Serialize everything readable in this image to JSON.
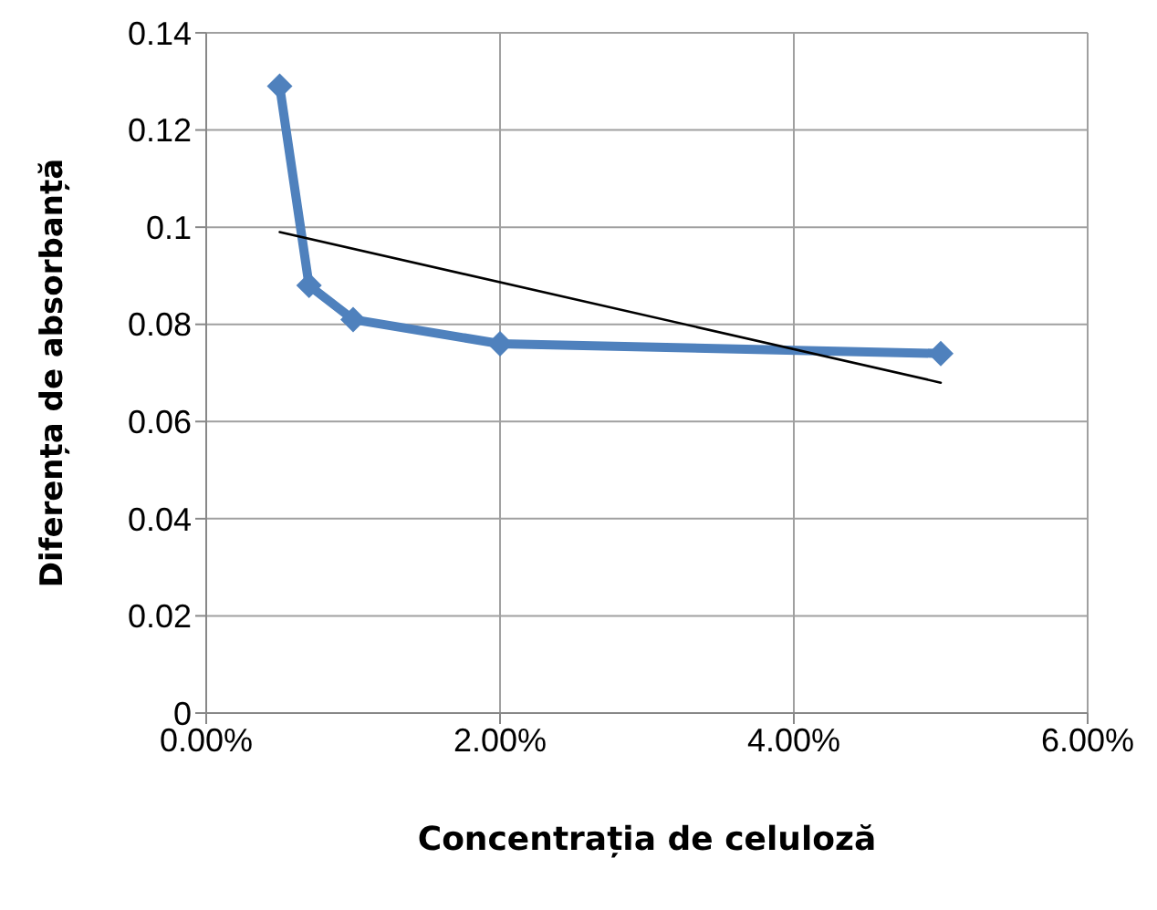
{
  "chart_data": {
    "type": "line",
    "xlabel": "Concentrația de celuloză",
    "ylabel": "Diferența de absorbanță",
    "xlim": [
      0,
      6
    ],
    "xticks": [
      {
        "value": 0,
        "label": "0.00%"
      },
      {
        "value": 2,
        "label": "2.00%"
      },
      {
        "value": 4,
        "label": "4.00%"
      },
      {
        "value": 6,
        "label": "6.00%"
      }
    ],
    "ylim": [
      0,
      0.14
    ],
    "yticks": [
      0,
      0.02,
      0.04,
      0.06,
      0.08,
      0.1,
      0.12,
      0.14
    ],
    "grid": true,
    "legend": false,
    "series": [
      {
        "color": "#4f81bd",
        "x": [
          0.5,
          0.7,
          1,
          2,
          5
        ],
        "values": [
          0.129,
          0.088,
          0.081,
          0.076,
          0.074
        ],
        "marker": "diamond"
      },
      {
        "color": "#000000",
        "x": [
          0.5,
          5
        ],
        "values": [
          0.099,
          0.068
        ],
        "marker": "none"
      }
    ]
  }
}
